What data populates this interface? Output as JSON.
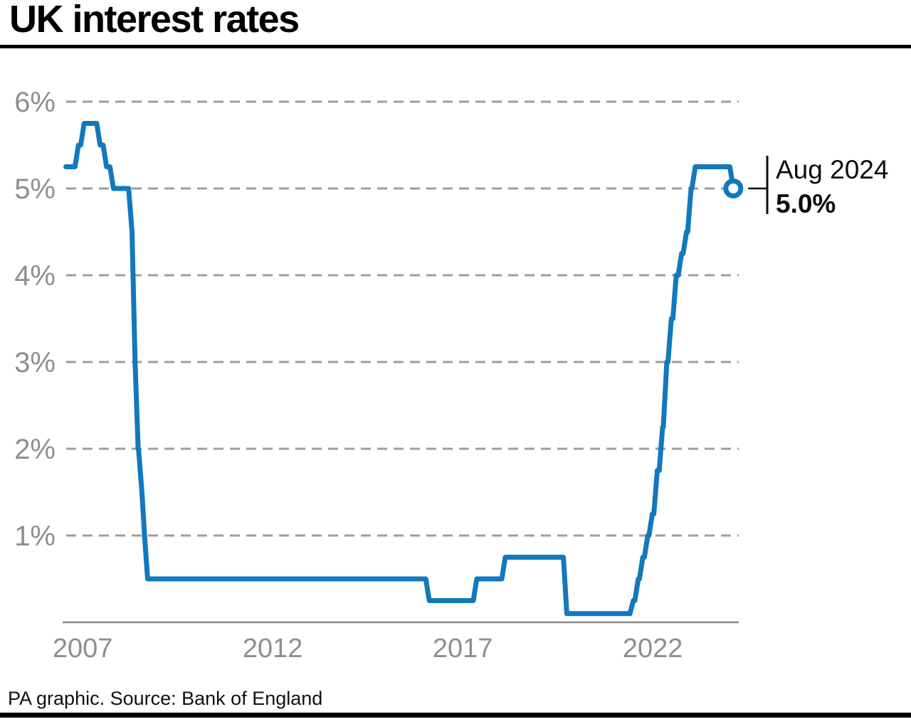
{
  "page": {
    "title": "UK interest rates",
    "footer": "PA graphic. Source: Bank of England"
  },
  "colors": {
    "line": "#1179bc",
    "grid": "#9e9e9e",
    "tick_text": "#8e8e8e",
    "axis_line": "#8a8a8a",
    "annotation_text": "#0b0b0b",
    "background": "#ffffff"
  },
  "chart_data": {
    "type": "line",
    "title": "UK interest rates",
    "unit": "%",
    "grid": "horizontal-dashed",
    "legend_position": "none",
    "ylim": [
      0,
      6.2
    ],
    "xlim": [
      2006.95,
      2025.2
    ],
    "y_ticks": [
      {
        "value": 6,
        "label": "6%"
      },
      {
        "value": 5,
        "label": "5%"
      },
      {
        "value": 4,
        "label": "4%"
      },
      {
        "value": 3,
        "label": "3%"
      },
      {
        "value": 2,
        "label": "2%"
      },
      {
        "value": 1,
        "label": "1%"
      }
    ],
    "x_ticks": [
      {
        "year": 2007,
        "label": "2007"
      },
      {
        "year": 2012,
        "label": "2012"
      },
      {
        "year": 2017,
        "label": "2017"
      },
      {
        "year": 2022,
        "label": "2022"
      }
    ],
    "series": [
      {
        "name": "UK interest rate",
        "points": [
          {
            "date": "Jan 2007",
            "t": 2007.03,
            "rate": 5.25
          },
          {
            "date": "May 2007",
            "t": 2007.36,
            "rate": 5.5
          },
          {
            "date": "Jul 2007",
            "t": 2007.51,
            "rate": 5.75
          },
          {
            "date": "Dec 2007",
            "t": 2007.93,
            "rate": 5.5
          },
          {
            "date": "Feb 2008",
            "t": 2008.1,
            "rate": 5.25
          },
          {
            "date": "Apr 2008",
            "t": 2008.28,
            "rate": 5.0
          },
          {
            "date": "Oct 2008",
            "t": 2008.77,
            "rate": 4.5
          },
          {
            "date": "Nov 2008",
            "t": 2008.85,
            "rate": 3.0
          },
          {
            "date": "Dec 2008",
            "t": 2008.93,
            "rate": 2.0
          },
          {
            "date": "Jan 2009",
            "t": 2009.03,
            "rate": 1.5
          },
          {
            "date": "Feb 2009",
            "t": 2009.1,
            "rate": 1.0
          },
          {
            "date": "Mar 2009",
            "t": 2009.18,
            "rate": 0.5
          },
          {
            "date": "Aug 2016",
            "t": 2016.59,
            "rate": 0.25
          },
          {
            "date": "Nov 2017",
            "t": 2017.84,
            "rate": 0.5
          },
          {
            "date": "Aug 2018",
            "t": 2018.59,
            "rate": 0.75
          },
          {
            "date": "Mar 2020",
            "t": 2020.21,
            "rate": 0.1
          },
          {
            "date": "Dec 2021",
            "t": 2021.96,
            "rate": 0.25
          },
          {
            "date": "Feb 2022",
            "t": 2022.09,
            "rate": 0.5
          },
          {
            "date": "Mar 2022",
            "t": 2022.21,
            "rate": 0.75
          },
          {
            "date": "May 2022",
            "t": 2022.34,
            "rate": 1.0
          },
          {
            "date": "Jun 2022",
            "t": 2022.46,
            "rate": 1.25
          },
          {
            "date": "Aug 2022",
            "t": 2022.59,
            "rate": 1.75
          },
          {
            "date": "Sep 2022",
            "t": 2022.73,
            "rate": 2.25
          },
          {
            "date": "Nov 2022",
            "t": 2022.84,
            "rate": 3.0
          },
          {
            "date": "Dec 2022",
            "t": 2022.96,
            "rate": 3.5
          },
          {
            "date": "Feb 2023",
            "t": 2023.09,
            "rate": 4.0
          },
          {
            "date": "Mar 2023",
            "t": 2023.23,
            "rate": 4.25
          },
          {
            "date": "May 2023",
            "t": 2023.36,
            "rate": 4.5
          },
          {
            "date": "Jun 2023",
            "t": 2023.48,
            "rate": 5.0
          },
          {
            "date": "Aug 2023",
            "t": 2023.59,
            "rate": 5.25
          },
          {
            "date": "Aug 2024",
            "t": 2024.59,
            "rate": 5.0
          }
        ]
      }
    ],
    "annotation": {
      "date_label": "Aug 2024",
      "value_label": "5.0%",
      "t": 2024.59,
      "rate": 5.0
    }
  }
}
